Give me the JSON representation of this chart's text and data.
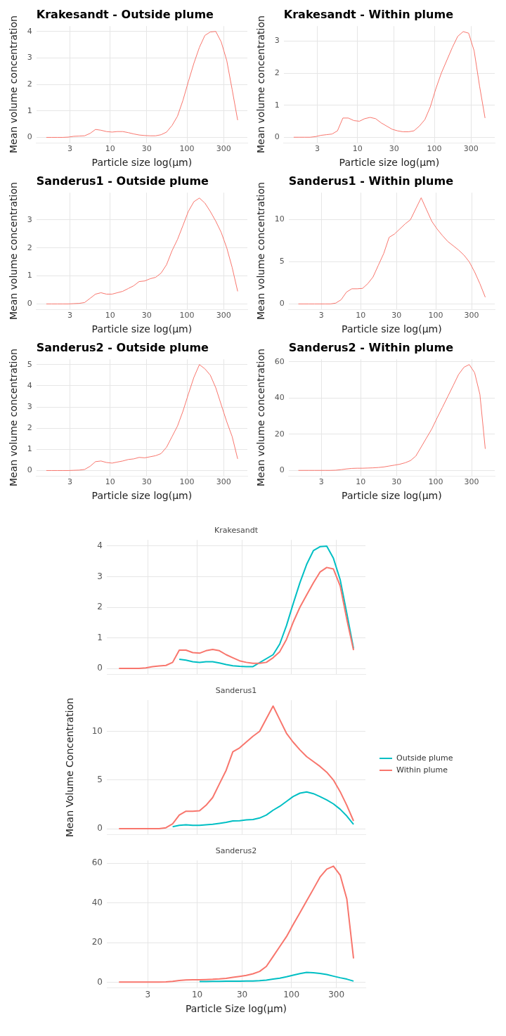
{
  "chart_data": [
    {
      "type": "line",
      "title": "Krakesandt - Outside plume",
      "xlabel": "Particle size log(µm)",
      "ylabel": "Mean volume concentration",
      "log": "x",
      "grid": true,
      "marker": "none",
      "color": "#f8766d",
      "xlim": [
        1.1,
        610
      ],
      "xticks": [
        3,
        10,
        30,
        100,
        300
      ],
      "ylim": [
        -0.2,
        4.2
      ],
      "yticks": [
        0,
        1,
        2,
        3,
        4
      ],
      "x": [
        1.48,
        1.74,
        2.05,
        2.42,
        2.85,
        3.36,
        3.95,
        4.66,
        5.49,
        6.46,
        7.61,
        8.97,
        10.6,
        12.4,
        14.6,
        17.2,
        20.3,
        23.9,
        28.2,
        33.2,
        39.1,
        46.0,
        54.2,
        63.9,
        75.2,
        88.6,
        104,
        123,
        145,
        171,
        201,
        237,
        279,
        329,
        387,
        456
      ],
      "values": [
        0,
        0,
        0,
        0,
        0.01,
        0.04,
        0.05,
        0.06,
        0.15,
        0.3,
        0.27,
        0.22,
        0.2,
        0.22,
        0.22,
        0.18,
        0.13,
        0.09,
        0.07,
        0.06,
        0.06,
        0.1,
        0.2,
        0.45,
        0.8,
        1.4,
        2.1,
        2.8,
        3.4,
        3.85,
        3.98,
        4.0,
        3.6,
        2.9,
        1.8,
        0.65
      ]
    },
    {
      "type": "line",
      "title": "Krakesandt - Within plume",
      "xlabel": "Particle size log(µm)",
      "ylabel": "Mean volume concentration",
      "log": "x",
      "grid": true,
      "marker": "none",
      "color": "#f8766d",
      "xlim": [
        1.1,
        610
      ],
      "xticks": [
        3,
        10,
        30,
        100,
        300
      ],
      "ylim": [
        -0.17,
        3.47
      ],
      "yticks": [
        0,
        1,
        2,
        3
      ],
      "x": [
        1.48,
        1.74,
        2.05,
        2.42,
        2.85,
        3.36,
        3.95,
        4.66,
        5.49,
        6.46,
        7.61,
        8.97,
        10.6,
        12.4,
        14.6,
        17.2,
        20.3,
        23.9,
        28.2,
        33.2,
        39.1,
        46.0,
        54.2,
        63.9,
        75.2,
        88.6,
        104,
        123,
        145,
        171,
        201,
        237,
        279,
        329,
        387,
        456
      ],
      "values": [
        0,
        0,
        0,
        0,
        0.02,
        0.06,
        0.08,
        0.1,
        0.2,
        0.6,
        0.6,
        0.52,
        0.5,
        0.58,
        0.62,
        0.58,
        0.45,
        0.35,
        0.25,
        0.2,
        0.17,
        0.17,
        0.2,
        0.35,
        0.55,
        0.95,
        1.5,
        2.0,
        2.4,
        2.8,
        3.15,
        3.3,
        3.25,
        2.7,
        1.6,
        0.6
      ]
    },
    {
      "type": "line",
      "title": "Sanderus1 - Outside plume",
      "xlabel": "Particle size log(µm)",
      "ylabel": "Mean volume concentration",
      "log": "x",
      "grid": true,
      "marker": "none",
      "color": "#f8766d",
      "xlim": [
        1.1,
        610
      ],
      "xticks": [
        3,
        10,
        30,
        100,
        300
      ],
      "ylim": [
        -0.19,
        3.97
      ],
      "yticks": [
        0,
        1,
        2,
        3
      ],
      "x": [
        1.48,
        1.74,
        2.05,
        2.42,
        2.85,
        3.36,
        3.95,
        4.66,
        5.49,
        6.46,
        7.61,
        8.97,
        10.6,
        12.4,
        14.6,
        17.2,
        20.3,
        23.9,
        28.2,
        33.2,
        39.1,
        46.0,
        54.2,
        63.9,
        75.2,
        88.6,
        104,
        123,
        145,
        171,
        201,
        237,
        279,
        329,
        387,
        456
      ],
      "values": [
        0,
        0,
        0,
        0,
        0,
        0.01,
        0.02,
        0.05,
        0.2,
        0.35,
        0.4,
        0.35,
        0.35,
        0.4,
        0.45,
        0.55,
        0.65,
        0.8,
        0.82,
        0.9,
        0.95,
        1.1,
        1.4,
        1.9,
        2.3,
        2.8,
        3.3,
        3.65,
        3.78,
        3.6,
        3.3,
        2.95,
        2.55,
        2.0,
        1.3,
        0.45
      ]
    },
    {
      "type": "line",
      "title": "Sanderus1 - Within plume",
      "xlabel": "Particle size log(µm)",
      "ylabel": "Mean volume concentration",
      "log": "x",
      "grid": true,
      "marker": "none",
      "color": "#f8766d",
      "xlim": [
        1.1,
        610
      ],
      "xticks": [
        3,
        10,
        30,
        100,
        300
      ],
      "ylim": [
        -0.63,
        13.2
      ],
      "yticks": [
        0,
        5,
        10
      ],
      "x": [
        1.48,
        1.74,
        2.05,
        2.42,
        2.85,
        3.36,
        3.95,
        4.66,
        5.49,
        6.46,
        7.61,
        8.97,
        10.6,
        12.4,
        14.6,
        17.2,
        20.3,
        23.9,
        28.2,
        33.2,
        39.1,
        46.0,
        54.2,
        63.9,
        75.2,
        88.6,
        104,
        123,
        145,
        171,
        201,
        237,
        279,
        329,
        387,
        456
      ],
      "values": [
        0,
        0,
        0,
        0,
        0,
        0,
        0,
        0.1,
        0.5,
        1.4,
        1.8,
        1.8,
        1.85,
        2.4,
        3.2,
        4.6,
        6.0,
        7.9,
        8.3,
        8.9,
        9.5,
        10.0,
        11.3,
        12.6,
        11.2,
        9.8,
        8.9,
        8.1,
        7.4,
        6.9,
        6.4,
        5.8,
        5.0,
        3.8,
        2.4,
        0.8
      ]
    },
    {
      "type": "line",
      "title": "Sanderus2 - Outside plume",
      "xlabel": "Particle size log(µm)",
      "ylabel": "Mean volume concentration",
      "log": "x",
      "grid": true,
      "marker": "none",
      "color": "#f8766d",
      "xlim": [
        1.1,
        610
      ],
      "xticks": [
        3,
        10,
        30,
        100,
        300
      ],
      "ylim": [
        -0.25,
        5.25
      ],
      "yticks": [
        0,
        1,
        2,
        3,
        4,
        5
      ],
      "x": [
        1.48,
        1.74,
        2.05,
        2.42,
        2.85,
        3.36,
        3.95,
        4.66,
        5.49,
        6.46,
        7.61,
        8.97,
        10.6,
        12.4,
        14.6,
        17.2,
        20.3,
        23.9,
        28.2,
        33.2,
        39.1,
        46.0,
        54.2,
        63.9,
        75.2,
        88.6,
        104,
        123,
        145,
        171,
        201,
        237,
        279,
        329,
        387,
        456
      ],
      "values": [
        0,
        0,
        0,
        0,
        0,
        0.01,
        0.02,
        0.05,
        0.2,
        0.42,
        0.45,
        0.38,
        0.35,
        0.4,
        0.45,
        0.52,
        0.55,
        0.62,
        0.6,
        0.65,
        0.7,
        0.8,
        1.1,
        1.6,
        2.1,
        2.8,
        3.6,
        4.4,
        5.0,
        4.8,
        4.5,
        3.9,
        3.1,
        2.3,
        1.6,
        0.55
      ]
    },
    {
      "type": "line",
      "title": "Sanderus2 - Within plume",
      "xlabel": "Particle size log(µm)",
      "ylabel": "Mean volume concentration",
      "log": "x",
      "grid": true,
      "marker": "none",
      "color": "#f8766d",
      "xlim": [
        1.1,
        610
      ],
      "xticks": [
        3,
        10,
        30,
        100,
        300
      ],
      "ylim": [
        -2.9,
        61.4
      ],
      "yticks": [
        0,
        20,
        40,
        60
      ],
      "x": [
        1.48,
        1.74,
        2.05,
        2.42,
        2.85,
        3.36,
        3.95,
        4.66,
        5.49,
        6.46,
        7.61,
        8.97,
        10.6,
        12.4,
        14.6,
        17.2,
        20.3,
        23.9,
        28.2,
        33.2,
        39.1,
        46.0,
        54.2,
        63.9,
        75.2,
        88.6,
        104,
        123,
        145,
        171,
        201,
        237,
        279,
        329,
        387,
        456
      ],
      "values": [
        0.1,
        0.1,
        0.1,
        0.1,
        0.1,
        0.1,
        0.1,
        0.2,
        0.5,
        0.9,
        1.2,
        1.3,
        1.3,
        1.4,
        1.5,
        1.7,
        2.0,
        2.5,
        3.0,
        3.5,
        4.3,
        5.5,
        8.0,
        13,
        18,
        23,
        29,
        35,
        41,
        47,
        53,
        57,
        58.5,
        54,
        42,
        12
      ]
    },
    {
      "type": "line",
      "title": "Krakesandt",
      "log": "x",
      "grid": true,
      "marker": "none",
      "tick_labels": "y",
      "xlim": [
        1.1,
        610
      ],
      "xticks": [
        3,
        10,
        30,
        100,
        300
      ],
      "ylim": [
        -0.2,
        4.2
      ],
      "yticks": [
        0,
        1,
        2,
        3,
        4
      ],
      "x": [
        1.48,
        1.74,
        2.05,
        2.42,
        2.85,
        3.36,
        3.95,
        4.66,
        5.49,
        6.46,
        7.61,
        8.97,
        10.6,
        12.4,
        14.6,
        17.2,
        20.3,
        23.9,
        28.2,
        33.2,
        39.1,
        46.0,
        54.2,
        63.9,
        75.2,
        88.6,
        104,
        123,
        145,
        171,
        201,
        237,
        279,
        329,
        387,
        456
      ],
      "series": [
        {
          "color": "#00bfc4",
          "values": [
            null,
            null,
            null,
            null,
            null,
            null,
            null,
            null,
            null,
            0.3,
            0.27,
            0.22,
            0.2,
            0.22,
            0.22,
            0.18,
            0.13,
            0.09,
            0.07,
            0.06,
            0.06,
            null,
            null,
            0.45,
            0.8,
            1.4,
            2.1,
            2.8,
            3.4,
            3.85,
            3.98,
            4.0,
            3.6,
            2.9,
            1.8,
            0.65
          ]
        },
        {
          "color": "#f8766d",
          "values": [
            0,
            0,
            0,
            0,
            0.02,
            0.06,
            0.08,
            0.1,
            0.2,
            0.6,
            0.6,
            0.52,
            0.5,
            0.58,
            0.62,
            0.58,
            0.45,
            0.35,
            0.25,
            0.2,
            0.17,
            0.17,
            0.2,
            0.35,
            0.55,
            0.95,
            1.5,
            2.0,
            2.4,
            2.8,
            3.15,
            3.3,
            3.25,
            2.7,
            1.6,
            0.6
          ]
        }
      ]
    },
    {
      "type": "line",
      "title": "Sanderus1",
      "ylabel": "Mean Volume Concentration",
      "log": "x",
      "grid": true,
      "marker": "none",
      "legend": "right",
      "tick_labels": "y",
      "xlim": [
        1.1,
        610
      ],
      "xticks": [
        3,
        10,
        30,
        100,
        300
      ],
      "ylim": [
        -0.63,
        13.2
      ],
      "yticks": [
        0,
        5,
        10
      ],
      "x": [
        1.48,
        1.74,
        2.05,
        2.42,
        2.85,
        3.36,
        3.95,
        4.66,
        5.49,
        6.46,
        7.61,
        8.97,
        10.6,
        12.4,
        14.6,
        17.2,
        20.3,
        23.9,
        28.2,
        33.2,
        39.1,
        46.0,
        54.2,
        63.9,
        75.2,
        88.6,
        104,
        123,
        145,
        171,
        201,
        237,
        279,
        329,
        387,
        456
      ],
      "series": [
        {
          "name": "Outside plume",
          "color": "#00bfc4",
          "values": [
            null,
            null,
            null,
            null,
            null,
            null,
            null,
            null,
            0.2,
            0.35,
            0.4,
            0.35,
            0.35,
            0.4,
            0.45,
            0.55,
            0.65,
            0.8,
            0.82,
            0.9,
            0.95,
            1.1,
            1.4,
            1.9,
            2.3,
            2.8,
            3.3,
            3.65,
            3.78,
            3.6,
            3.3,
            2.95,
            2.55,
            2.0,
            1.3,
            0.45
          ]
        },
        {
          "name": "Within plume",
          "color": "#f8766d",
          "values": [
            0,
            0,
            0,
            0,
            0,
            0,
            0,
            0.1,
            0.5,
            1.4,
            1.8,
            1.8,
            1.85,
            2.4,
            3.2,
            4.6,
            6.0,
            7.9,
            8.3,
            8.9,
            9.5,
            10.0,
            11.3,
            12.6,
            11.2,
            9.8,
            8.9,
            8.1,
            7.4,
            6.9,
            6.4,
            5.8,
            5.0,
            3.8,
            2.4,
            0.8
          ]
        }
      ]
    },
    {
      "type": "line",
      "title": "Sanderus2",
      "xlabel": "Particle Size log(µm)",
      "log": "x",
      "grid": true,
      "marker": "none",
      "xlim": [
        1.1,
        610
      ],
      "xticks": [
        3,
        10,
        30,
        100,
        300
      ],
      "ylim": [
        -2.9,
        61.4
      ],
      "yticks": [
        0,
        20,
        40,
        60
      ],
      "x": [
        1.48,
        1.74,
        2.05,
        2.42,
        2.85,
        3.36,
        3.95,
        4.66,
        5.49,
        6.46,
        7.61,
        8.97,
        10.6,
        12.4,
        14.6,
        17.2,
        20.3,
        23.9,
        28.2,
        33.2,
        39.1,
        46.0,
        54.2,
        63.9,
        75.2,
        88.6,
        104,
        123,
        145,
        171,
        201,
        237,
        279,
        329,
        387,
        456
      ],
      "series": [
        {
          "color": "#00bfc4",
          "values": [
            null,
            null,
            null,
            null,
            null,
            null,
            null,
            null,
            null,
            null,
            null,
            null,
            0.4,
            0.4,
            0.5,
            0.5,
            0.6,
            0.6,
            0.6,
            0.7,
            0.7,
            0.8,
            1.1,
            1.6,
            2.1,
            2.8,
            3.6,
            4.4,
            5.0,
            4.8,
            4.5,
            3.9,
            3.1,
            2.3,
            1.6,
            0.6
          ]
        },
        {
          "color": "#f8766d",
          "values": [
            0.1,
            0.1,
            0.1,
            0.1,
            0.1,
            0.1,
            0.1,
            0.2,
            0.5,
            0.9,
            1.2,
            1.3,
            1.3,
            1.4,
            1.5,
            1.7,
            2.0,
            2.5,
            3.0,
            3.5,
            4.3,
            5.5,
            8.0,
            13,
            18,
            23,
            29,
            35,
            41,
            47,
            53,
            57,
            58.5,
            54,
            42,
            12
          ]
        }
      ]
    }
  ]
}
